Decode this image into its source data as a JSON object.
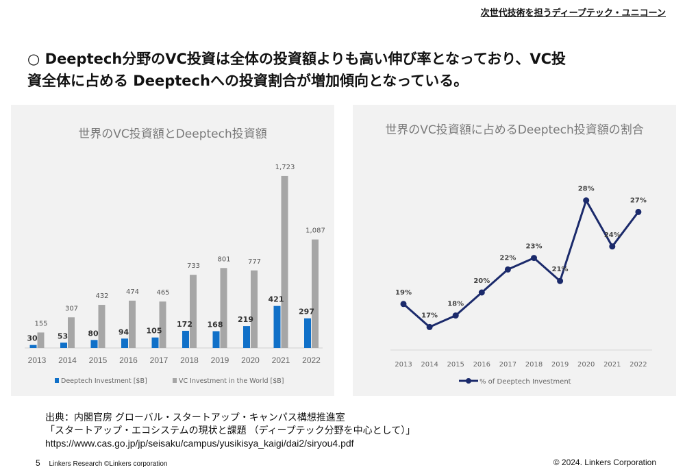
{
  "header": {
    "tag": "次世代技術を担うディープテック・ユニコーン"
  },
  "headline": {
    "line1": "○ Deeptech分野のVC投資は全体の投資額よりも高い伸び率となっており、VC投",
    "line2": "資全体に占める Deeptechへの投資割合が増加傾向となっている。"
  },
  "chart_data": [
    {
      "type": "bar",
      "title": "世界のVC投資額とDeeptech投資額",
      "categories": [
        "2013",
        "2014",
        "2015",
        "2016",
        "2017",
        "2018",
        "2019",
        "2020",
        "2021",
        "2022"
      ],
      "series": [
        {
          "name": "Deeptech Investment [$B]",
          "color": "#1070c8",
          "values": [
            30,
            53,
            80,
            94,
            105,
            172,
            168,
            219,
            421,
            297
          ],
          "labels": [
            "30",
            "53",
            "80",
            "94",
            "105",
            "172",
            "168",
            "219",
            "421",
            "297"
          ]
        },
        {
          "name": "VC Investment in the World [$B]",
          "color": "#a6a6a6",
          "values": [
            155,
            307,
            432,
            474,
            465,
            733,
            801,
            777,
            1723,
            1087
          ],
          "labels": [
            "155",
            "307",
            "432",
            "474",
            "465",
            "733",
            "801",
            "777",
            "1,723",
            "1,087"
          ]
        }
      ],
      "ylim": [
        0,
        1750
      ],
      "grid": false,
      "legend": "bottom"
    },
    {
      "type": "line",
      "title": "世界のVC投資額に占めるDeeptech投資額の割合",
      "categories": [
        "2013",
        "2014",
        "2015",
        "2016",
        "2017",
        "2018",
        "2019",
        "2020",
        "2021",
        "2022"
      ],
      "series": [
        {
          "name": "% of Deeptech Investment",
          "color": "#1b2a6b",
          "values": [
            19,
            17,
            18,
            20,
            22,
            23,
            21,
            28,
            24,
            27
          ],
          "labels": [
            "19%",
            "17%",
            "18%",
            "20%",
            "22%",
            "23%",
            "21%",
            "28%",
            "24%",
            "27%"
          ]
        }
      ],
      "ylim": [
        15,
        30
      ],
      "grid": false,
      "legend": "bottom"
    }
  ],
  "source": {
    "line1": "出典：内閣官房 グローバル・スタートアップ・キャンパス構想推進室",
    "line2": "「スタートアップ・エコシステムの現状と課題 （ディープテック分野を中心として）」",
    "line3": "https://www.cas.go.jp/jp/seisaku/campus/yusikisya_kaigi/dai2/siryou4.pdf"
  },
  "footer": {
    "page_number": "5",
    "left_text": "Linkers Research ©Linkers corporation",
    "copyright": "© 2024. Linkers Corporation"
  }
}
